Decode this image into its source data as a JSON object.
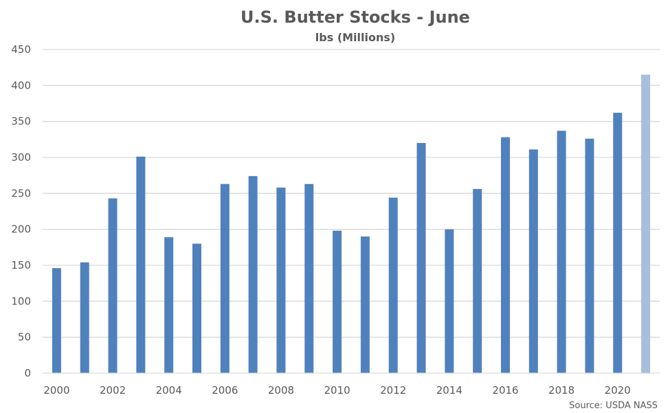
{
  "chart_data": {
    "type": "bar",
    "title": "U.S. Butter Stocks - June",
    "subtitle": "lbs (Millions)",
    "source": "Source: USDA NASS",
    "categories": [
      "2000",
      "2001",
      "2002",
      "2003",
      "2004",
      "2005",
      "2006",
      "2007",
      "2008",
      "2009",
      "2010",
      "2011",
      "2012",
      "2013",
      "2014",
      "2015",
      "2016",
      "2017",
      "2018",
      "2019",
      "2020",
      "2021"
    ],
    "x_tick_labels": [
      "2000",
      "",
      "2002",
      "",
      "2004",
      "",
      "2006",
      "",
      "2008",
      "",
      "2010",
      "",
      "2012",
      "",
      "2014",
      "",
      "2016",
      "",
      "2018",
      "",
      "2020",
      ""
    ],
    "values": [
      146,
      154,
      243,
      301,
      189,
      180,
      263,
      274,
      258,
      263,
      198,
      190,
      244,
      320,
      200,
      256,
      328,
      311,
      337,
      326,
      362,
      415
    ],
    "ylim": [
      0,
      450
    ],
    "yticks": [
      0,
      50,
      100,
      150,
      200,
      250,
      300,
      350,
      400,
      450
    ],
    "grid": true,
    "colors": {
      "bar": "#4f81bd",
      "highlight_bar": "#a7bfde",
      "grid": "#d9d9d9",
      "text": "#595959"
    },
    "highlight_index": 21
  }
}
